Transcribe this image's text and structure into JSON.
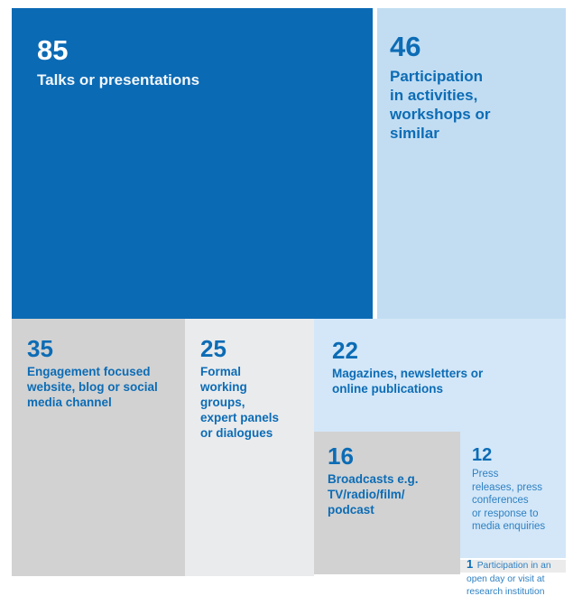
{
  "colors": {
    "background": "#ffffff",
    "dark_blue_tile": "#0b6ab4",
    "medium_light_blue_tile": "#c2ddf2",
    "light_blue_tile": "#d3e7f8",
    "gray_tile": "#d2d2d2",
    "light_gray_tile": "#eaebed",
    "pale_gray_tile": "#ebebeb",
    "bold_text_blue": "#0c6cb5",
    "light_text_blue": "#2f80c2",
    "white_text": "#ffffff"
  },
  "tiles": {
    "talks": {
      "value": "85",
      "label": "Talks or presentations"
    },
    "participation": {
      "value": "46",
      "label": "Participation\nin activities,\nworkshops or\nsimilar"
    },
    "engagement": {
      "value": "35",
      "label": "Engagement focused\nwebsite, blog or social\nmedia channel"
    },
    "formal": {
      "value": "25",
      "label": "Formal\nworking\ngroups,\nexpert panels\nor dialogues"
    },
    "magazines": {
      "value": "22",
      "label": "Magazines, newsletters or\nonline publications"
    },
    "broadcasts": {
      "value": "16",
      "label": "Broadcasts e.g.\nTV/radio/film/\npodcast"
    },
    "press": {
      "value": "12",
      "label": "Press\nreleases, press\nconferences\nor response to\nmedia enquiries"
    },
    "openday": {
      "value": "1",
      "label": "Participation in an\nopen day or visit at\nresearch institution"
    }
  },
  "chart_data": {
    "type": "treemap",
    "title": "",
    "categories": [
      "Talks or presentations",
      "Participation in activities, workshops or similar",
      "Engagement focused website, blog or social media channel",
      "Formal working groups, expert panels or dialogues",
      "Magazines, newsletters or online publications",
      "Broadcasts e.g. TV/radio/film/podcast",
      "Press releases, press conferences or response to media enquiries",
      "Participation in an open day or visit at research institution"
    ],
    "values": [
      85,
      46,
      35,
      25,
      22,
      16,
      12,
      1
    ],
    "legend": "none",
    "layout": "treemap: largest value top-left (dark blue), values labeled inside each tile"
  }
}
